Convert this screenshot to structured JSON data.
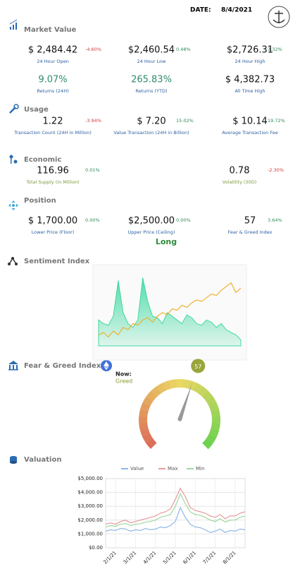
{
  "header": {
    "date_label": "DATE:",
    "date": "8/4/2021"
  },
  "sections": [
    {
      "title": "Market Value",
      "items": [
        {
          "value": "$ 2,484.42",
          "change": "-4.60%",
          "label": "24 Hour Open"
        },
        {
          "value": "$2,460.54",
          "change": "0.48%",
          "label": "24 Hour Low"
        },
        {
          "value": "$2,726.31",
          "change": "3.32%",
          "label": "24 Hour High"
        },
        {
          "value": "9.07%",
          "label": "Returns (24H)"
        },
        {
          "value": "265.83%",
          "label": "Returns (YTD)"
        },
        {
          "value": "$ 4,382.73",
          "label": "All Time High"
        }
      ]
    },
    {
      "title": "Usage",
      "items": [
        {
          "value": "1.22",
          "change": "-3.94%",
          "label": "Transaction Count (24H in Million)"
        },
        {
          "value": "$ 7.20",
          "change": "15.02%",
          "label": "Value Transaction (24H in Billion)"
        },
        {
          "value": "$ 10.14",
          "change": "19.72%",
          "label": "Average Transaction Fee"
        }
      ]
    },
    {
      "title": "Economic",
      "items": [
        {
          "value": "116.96",
          "change": "0.01%",
          "label": "Total Supply (in Million)"
        },
        {
          "value": "0.78",
          "change": "-2.30%",
          "label": "Volatility (30D)"
        }
      ]
    },
    {
      "title": "Position",
      "items": [
        {
          "value": "$ 1,700.00",
          "change": "0.00%",
          "label": "Lower Price (Floor)"
        },
        {
          "value": "$2,500.00",
          "change": "0.00%",
          "label": "Upper Price (Ceiling)"
        },
        {
          "value": "57",
          "change": "3.64%",
          "label": "Fear & Greed Index"
        }
      ]
    }
  ],
  "position_signal": "Long",
  "chart_data": [
    {
      "type": "area",
      "title": "Sentiment Index",
      "ylim": [
        0,
        100
      ],
      "series": [
        {
          "color": "#3fd9a0",
          "values": [
            35,
            30,
            28,
            40,
            88,
            45,
            30,
            25,
            35,
            92,
            60,
            40,
            38,
            30,
            45,
            40,
            35,
            30,
            42,
            38,
            30,
            28,
            35,
            32,
            25,
            30,
            22,
            18,
            15,
            8
          ]
        },
        {
          "color": "#f0b030",
          "values": [
            15,
            18,
            12,
            20,
            15,
            25,
            22,
            30,
            28,
            35,
            38,
            32,
            40,
            45,
            42,
            50,
            48,
            55,
            52,
            58,
            62,
            60,
            65,
            70,
            68,
            75,
            80,
            85,
            72,
            78
          ]
        }
      ]
    },
    {
      "type": "gauge",
      "title": "Fear & Greed Index",
      "now_label": "Now:",
      "status": "Greed",
      "value": 57,
      "range": [
        0,
        100
      ]
    },
    {
      "type": "line",
      "title": "Valuation",
      "categories": [
        null,
        null,
        "2/1/21",
        null,
        null,
        null,
        "3/1/21",
        null,
        null,
        null,
        "4/1/21",
        null,
        null,
        null,
        "5/1/21",
        null,
        null,
        null,
        "6/1/21",
        null,
        null,
        null,
        "7/1/21",
        null,
        null,
        null,
        "8/1/21",
        null,
        null
      ],
      "series": [
        {
          "name": "Value",
          "color": "#8fb8e6",
          "values": [
            1200,
            1300,
            1250,
            1400,
            1350,
            1200,
            1300,
            1250,
            1400,
            1300,
            1350,
            1500,
            1450,
            1600,
            1900,
            2900,
            2200,
            1700,
            1500,
            1450,
            1300,
            1100,
            1200,
            1350,
            1100,
            1250,
            1200,
            1350,
            1300
          ]
        },
        {
          "name": "Max",
          "color": "#e69a9a",
          "values": [
            1700,
            1800,
            1700,
            1900,
            2000,
            1800,
            1900,
            2000,
            2100,
            2200,
            2300,
            2500,
            2600,
            2800,
            3500,
            4300,
            3700,
            2900,
            2700,
            2600,
            2500,
            2300,
            2200,
            2400,
            2100,
            2300,
            2300,
            2500,
            2600
          ]
        },
        {
          "name": "Min",
          "color": "#9fd89f",
          "values": [
            1500,
            1600,
            1550,
            1700,
            1750,
            1600,
            1700,
            1750,
            1850,
            1900,
            2000,
            2200,
            2300,
            2400,
            3000,
            3900,
            3200,
            2600,
            2400,
            2350,
            2200,
            2000,
            1900,
            2100,
            1850,
            2000,
            2000,
            2200,
            2300
          ]
        }
      ],
      "ylim": [
        0,
        5000
      ],
      "yticks": [
        {
          "value": 0,
          "label": "$0.00"
        },
        {
          "value": 1000,
          "label": "$1,000.00"
        },
        {
          "value": 2000,
          "label": "$2,000.00"
        },
        {
          "value": 3000,
          "label": "$3,000.00"
        },
        {
          "value": 4000,
          "label": "$4,000.00"
        },
        {
          "value": 5000,
          "label": "$5,000.00"
        }
      ],
      "grid": true,
      "legend": "top"
    }
  ]
}
